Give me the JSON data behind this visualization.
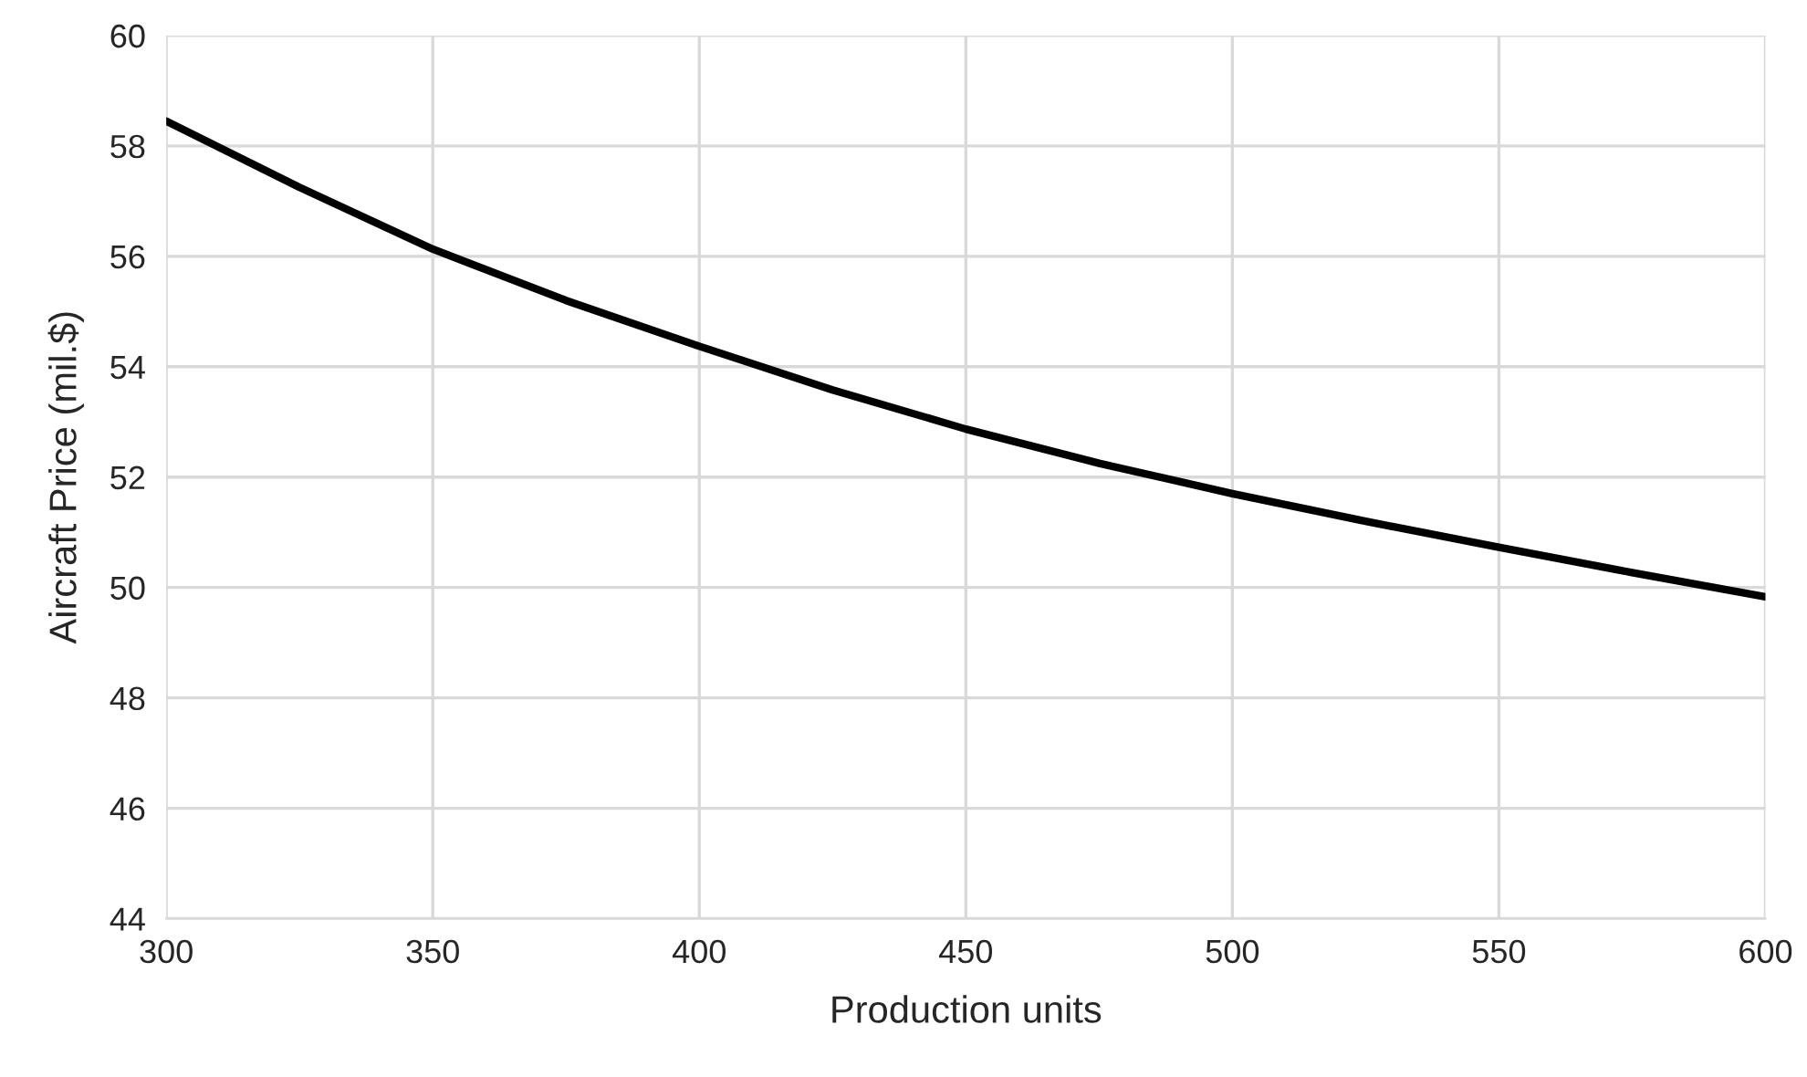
{
  "chart_data": {
    "type": "line",
    "xlabel": "Production units",
    "ylabel": "Aircraft Price (mil.$)",
    "x": [
      300,
      325,
      350,
      375,
      400,
      425,
      450,
      475,
      500,
      525,
      550,
      575,
      600
    ],
    "series": [
      {
        "color": "#000000",
        "values": [
          58.45,
          57.25,
          56.13,
          55.2,
          54.37,
          53.58,
          52.87,
          52.25,
          51.7,
          51.2,
          50.73,
          50.27,
          49.83
        ]
      }
    ],
    "xlim": [
      300,
      600
    ],
    "xticks": [
      300,
      350,
      400,
      450,
      500,
      550,
      600
    ],
    "ylim": [
      44,
      60
    ],
    "yticks": [
      44,
      46,
      48,
      50,
      52,
      54,
      56,
      58,
      60
    ],
    "grid": true,
    "marker": "none",
    "line_style": "solid"
  }
}
